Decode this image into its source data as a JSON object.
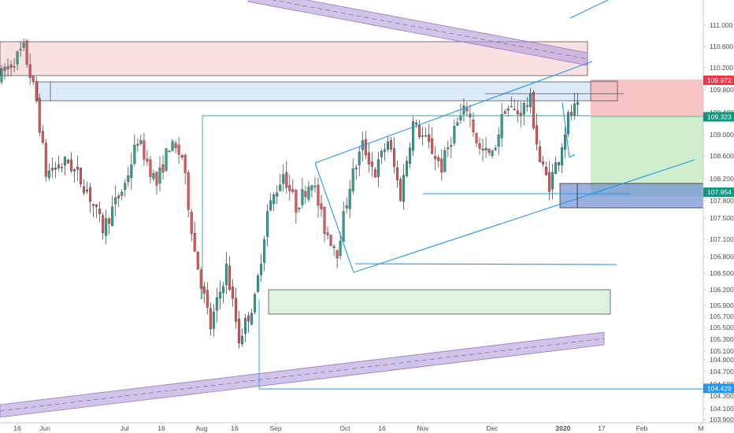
{
  "chart_data": {
    "type": "candlestick",
    "x_tick_labels": [
      "16",
      "Jun",
      "Jul",
      "16",
      "Aug",
      "16",
      "Sep",
      "Oct",
      "16",
      "Nov",
      "Dec",
      "2020",
      "17",
      "Feb",
      "M"
    ],
    "y_tick_values": [
      103.9,
      104.1,
      104.3,
      104.5,
      104.7,
      104.9,
      105.1,
      105.3,
      105.5,
      105.7,
      105.9,
      106.2,
      106.5,
      106.8,
      107.1,
      107.5,
      107.8,
      108.2,
      108.6,
      109.0,
      109.4,
      109.8,
      110.2,
      110.6,
      111.0
    ],
    "y_tick_labels": [
      "103.900",
      "104.100",
      "104.300",
      "104.500",
      "104.700",
      "104.900",
      "105.100",
      "105.300",
      "105.500",
      "105.700",
      "105.900",
      "106.200",
      "106.500",
      "106.800",
      "107.100",
      "107.500",
      "107.800",
      "108.200",
      "108.600",
      "109.000",
      "109.400",
      "109.800",
      "110.200",
      "110.600",
      "111.000"
    ],
    "price_tags": [
      {
        "label": "109.972",
        "value": 109.972,
        "color": "#f23645"
      },
      {
        "label": "109.323",
        "value": 109.323,
        "color": "#089981"
      },
      {
        "label": "107.954",
        "value": 107.954,
        "color": "#089981"
      },
      {
        "label": "104.429",
        "value": 104.429,
        "color": "#2196f3"
      }
    ],
    "colors": {
      "up": "#26a69a",
      "down": "#ef5350",
      "trendline": "#2196f3",
      "channel": "#9575cd"
    },
    "anchors": [
      {
        "day": 0,
        "price": 110.0
      },
      {
        "day": 8,
        "price": 110.55
      },
      {
        "day": 12,
        "price": 109.6
      },
      {
        "day": 15,
        "price": 108.3
      },
      {
        "day": 22,
        "price": 108.5
      },
      {
        "day": 28,
        "price": 108.0
      },
      {
        "day": 33,
        "price": 107.3
      },
      {
        "day": 40,
        "price": 108.1
      },
      {
        "day": 44,
        "price": 108.9
      },
      {
        "day": 50,
        "price": 108.1
      },
      {
        "day": 54,
        "price": 108.8
      },
      {
        "day": 58,
        "price": 108.6
      },
      {
        "day": 62,
        "price": 106.9
      },
      {
        "day": 67,
        "price": 105.5
      },
      {
        "day": 72,
        "price": 106.6
      },
      {
        "day": 76,
        "price": 105.3
      },
      {
        "day": 81,
        "price": 106.0
      },
      {
        "day": 85,
        "price": 107.6
      },
      {
        "day": 90,
        "price": 108.3
      },
      {
        "day": 94,
        "price": 107.7
      },
      {
        "day": 99,
        "price": 108.2
      },
      {
        "day": 103,
        "price": 107.3
      },
      {
        "day": 107,
        "price": 106.9
      },
      {
        "day": 111,
        "price": 108.1
      },
      {
        "day": 115,
        "price": 108.8
      },
      {
        "day": 119,
        "price": 108.3
      },
      {
        "day": 123,
        "price": 108.9
      },
      {
        "day": 127,
        "price": 107.9
      },
      {
        "day": 131,
        "price": 109.2
      },
      {
        "day": 136,
        "price": 108.8
      },
      {
        "day": 140,
        "price": 108.4
      },
      {
        "day": 144,
        "price": 109.1
      },
      {
        "day": 148,
        "price": 109.5
      },
      {
        "day": 152,
        "price": 108.7
      },
      {
        "day": 156,
        "price": 108.6
      },
      {
        "day": 160,
        "price": 109.5
      },
      {
        "day": 164,
        "price": 109.4
      },
      {
        "day": 168,
        "price": 109.6
      },
      {
        "day": 171,
        "price": 108.5
      },
      {
        "day": 174,
        "price": 108.1
      },
      {
        "day": 177,
        "price": 108.6
      },
      {
        "day": 180,
        "price": 109.3
      },
      {
        "day": 182,
        "price": 109.45
      }
    ]
  }
}
